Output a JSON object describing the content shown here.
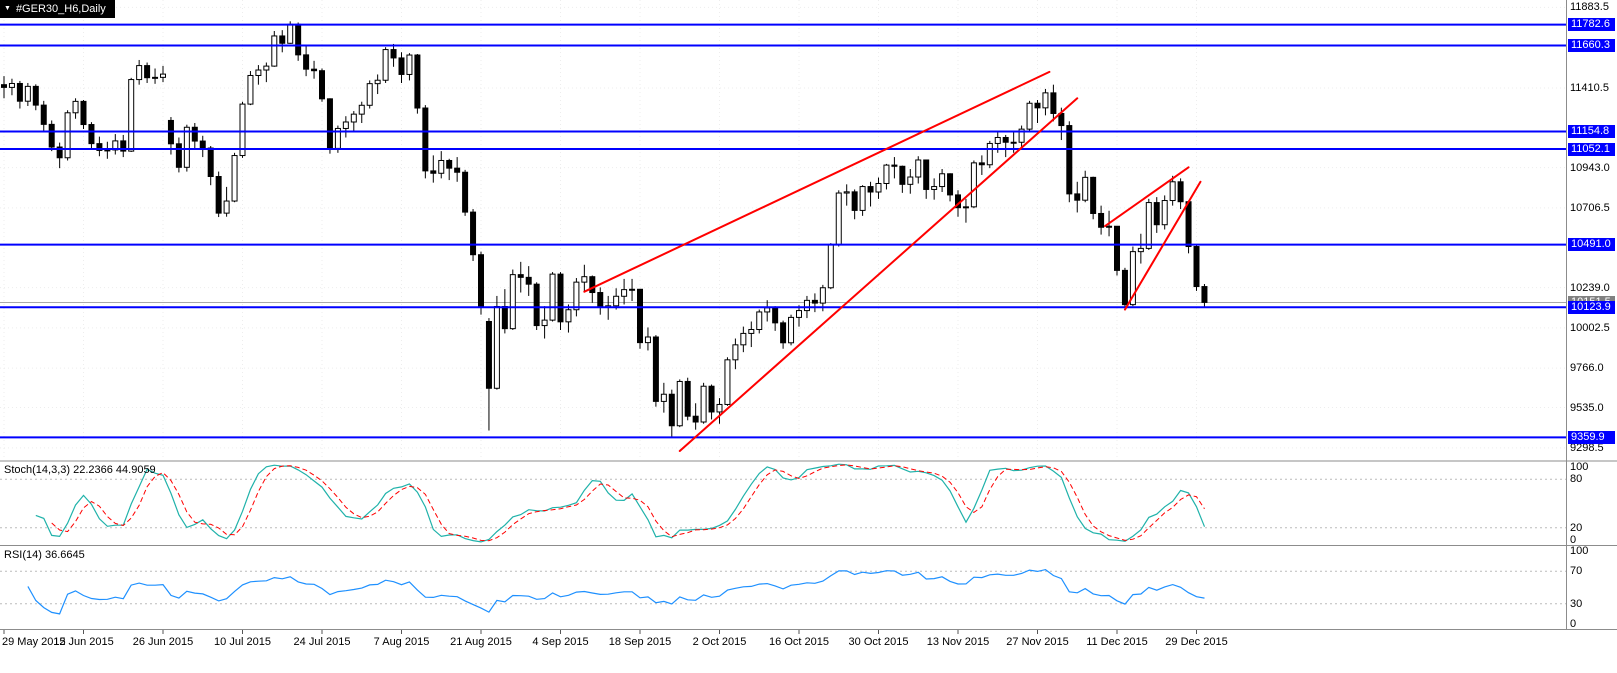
{
  "icons": {
    "expand_triangle": "▼"
  },
  "chart_data": {
    "type": "candlestick",
    "symbol_label": "#GER30_H6,Daily",
    "timeframe": "Daily",
    "x_tick_every": 10,
    "x_tick_labels": [
      "29 May 2015",
      "12 Jun 2015",
      "26 Jun 2015",
      "10 Jul 2015",
      "24 Jul 2015",
      "7 Aug 2015",
      "21 Aug 2015",
      "4 Sep 2015",
      "18 Sep 2015",
      "2 Oct 2015",
      "16 Oct 2015",
      "30 Oct 2015",
      "13 Nov 2015",
      "27 Nov 2015",
      "11 Dec 2015",
      "29 Dec 2015"
    ],
    "candles_format": "[open, high, low, close]",
    "candles": [
      [
        11430,
        11480,
        11350,
        11414
      ],
      [
        11414,
        11465,
        11368,
        11437
      ],
      [
        11437,
        11452,
        11290,
        11333
      ],
      [
        11333,
        11440,
        11305,
        11420
      ],
      [
        11420,
        11432,
        11280,
        11310
      ],
      [
        11310,
        11335,
        11160,
        11197
      ],
      [
        11197,
        11220,
        11040,
        11064
      ],
      [
        11064,
        11090,
        10940,
        11001
      ],
      [
        11001,
        11280,
        10985,
        11265
      ],
      [
        11265,
        11350,
        11230,
        11332
      ],
      [
        11332,
        11340,
        11170,
        11196
      ],
      [
        11196,
        11210,
        11050,
        11084
      ],
      [
        11084,
        11125,
        11010,
        11044
      ],
      [
        11044,
        11095,
        10995,
        11047
      ],
      [
        11047,
        11140,
        11020,
        11100
      ],
      [
        11100,
        11135,
        11005,
        11040
      ],
      [
        11040,
        11470,
        11035,
        11460
      ],
      [
        11460,
        11575,
        11430,
        11542
      ],
      [
        11542,
        11560,
        11440,
        11471
      ],
      [
        11471,
        11525,
        11435,
        11473
      ],
      [
        11473,
        11540,
        11445,
        11492
      ],
      [
        11220,
        11240,
        11020,
        11083
      ],
      [
        11083,
        11120,
        10915,
        10945
      ],
      [
        10945,
        11195,
        10920,
        11180
      ],
      [
        11180,
        11205,
        11050,
        11099
      ],
      [
        11099,
        11130,
        11005,
        11058
      ],
      [
        11058,
        11070,
        10840,
        10891
      ],
      [
        10891,
        10920,
        10653,
        10676
      ],
      [
        10676,
        10830,
        10655,
        10747
      ],
      [
        10747,
        11030,
        10740,
        11014
      ],
      [
        11014,
        11330,
        11000,
        11316
      ],
      [
        11316,
        11510,
        11310,
        11484
      ],
      [
        11484,
        11545,
        11430,
        11516
      ],
      [
        11516,
        11560,
        11445,
        11539
      ],
      [
        11539,
        11745,
        11535,
        11716
      ],
      [
        11716,
        11750,
        11620,
        11673
      ],
      [
        11673,
        11802,
        11670,
        11784
      ],
      [
        11784,
        11795,
        11570,
        11605
      ],
      [
        11605,
        11660,
        11480,
        11521
      ],
      [
        11521,
        11570,
        11465,
        11512
      ],
      [
        11512,
        11525,
        11330,
        11347
      ],
      [
        11347,
        11350,
        11025,
        11056
      ],
      [
        11056,
        11190,
        11030,
        11173
      ],
      [
        11173,
        11245,
        11120,
        11211
      ],
      [
        11211,
        11275,
        11160,
        11257
      ],
      [
        11257,
        11330,
        11205,
        11309
      ],
      [
        11309,
        11455,
        11290,
        11436
      ],
      [
        11436,
        11490,
        11375,
        11456
      ],
      [
        11456,
        11650,
        11440,
        11636
      ],
      [
        11636,
        11669,
        11535,
        11587
      ],
      [
        11587,
        11620,
        11440,
        11490
      ],
      [
        11490,
        11615,
        11455,
        11604
      ],
      [
        11604,
        11610,
        11260,
        11293
      ],
      [
        11293,
        11310,
        10880,
        10924
      ],
      [
        10924,
        11015,
        10855,
        10910
      ],
      [
        10910,
        11040,
        10880,
        10985
      ],
      [
        10985,
        10995,
        10870,
        10940
      ],
      [
        10940,
        11005,
        10860,
        10916
      ],
      [
        10916,
        10930,
        10660,
        10682
      ],
      [
        10682,
        10700,
        10395,
        10432
      ],
      [
        10432,
        10450,
        10080,
        10124
      ],
      [
        10040,
        10060,
        9400,
        9648
      ],
      [
        9648,
        10190,
        9640,
        10128
      ],
      [
        10128,
        10230,
        9970,
        9998
      ],
      [
        9998,
        10345,
        9990,
        10315
      ],
      [
        10315,
        10390,
        10210,
        10299
      ],
      [
        10299,
        10365,
        10190,
        10259
      ],
      [
        10259,
        10270,
        9990,
        10016
      ],
      [
        10016,
        10130,
        9940,
        10048
      ],
      [
        10048,
        10330,
        10040,
        10318
      ],
      [
        10318,
        10330,
        9990,
        10038
      ],
      [
        10038,
        10140,
        9975,
        10109
      ],
      [
        10109,
        10295,
        10070,
        10271
      ],
      [
        10271,
        10373,
        10210,
        10303
      ],
      [
        10303,
        10310,
        10150,
        10210
      ],
      [
        10210,
        10240,
        10080,
        10123
      ],
      [
        10123,
        10190,
        10050,
        10132
      ],
      [
        10132,
        10235,
        10110,
        10188
      ],
      [
        10188,
        10290,
        10140,
        10227
      ],
      [
        10227,
        10290,
        10160,
        10229
      ],
      [
        10229,
        10230,
        9880,
        9916
      ],
      [
        9916,
        10005,
        9870,
        9949
      ],
      [
        9949,
        9960,
        9540,
        9571
      ],
      [
        9571,
        9680,
        9505,
        9613
      ],
      [
        9613,
        9640,
        9360,
        9428
      ],
      [
        9428,
        9700,
        9420,
        9688
      ],
      [
        9688,
        9710,
        9460,
        9484
      ],
      [
        9484,
        9560,
        9405,
        9450
      ],
      [
        9450,
        9680,
        9440,
        9660
      ],
      [
        9660,
        9670,
        9465,
        9509
      ],
      [
        9509,
        9590,
        9440,
        9553
      ],
      [
        9553,
        9830,
        9545,
        9815
      ],
      [
        9815,
        9940,
        9760,
        9903
      ],
      [
        9903,
        10010,
        9860,
        9970
      ],
      [
        9970,
        10040,
        9890,
        9993
      ],
      [
        9993,
        10110,
        9970,
        10096
      ],
      [
        10096,
        10165,
        10040,
        10120
      ],
      [
        10120,
        10130,
        9985,
        10032
      ],
      [
        10032,
        10045,
        9880,
        9915
      ],
      [
        9915,
        10080,
        9900,
        10064
      ],
      [
        10064,
        10135,
        10010,
        10104
      ],
      [
        10104,
        10190,
        10060,
        10164
      ],
      [
        10164,
        10205,
        10095,
        10148
      ],
      [
        10148,
        10255,
        10100,
        10238
      ],
      [
        10238,
        10500,
        10230,
        10492
      ],
      [
        10492,
        10810,
        10480,
        10794
      ],
      [
        10794,
        10845,
        10720,
        10801
      ],
      [
        10801,
        10815,
        10640,
        10692
      ],
      [
        10692,
        10840,
        10660,
        10832
      ],
      [
        10832,
        10860,
        10715,
        10800
      ],
      [
        10800,
        10885,
        10760,
        10850
      ],
      [
        10850,
        10965,
        10815,
        10958
      ],
      [
        10958,
        11005,
        10880,
        10951
      ],
      [
        10951,
        10955,
        10795,
        10845
      ],
      [
        10845,
        10935,
        10790,
        10888
      ],
      [
        10888,
        11010,
        10850,
        10988
      ],
      [
        10988,
        10990,
        10760,
        10815
      ],
      [
        10815,
        10880,
        10755,
        10832
      ],
      [
        10832,
        10935,
        10800,
        10907
      ],
      [
        10907,
        10910,
        10745,
        10783
      ],
      [
        10783,
        10810,
        10655,
        10708
      ],
      [
        10708,
        10760,
        10620,
        10713
      ],
      [
        10713,
        10985,
        10705,
        10971
      ],
      [
        10971,
        11015,
        10900,
        10960
      ],
      [
        10960,
        11100,
        10940,
        11085
      ],
      [
        11085,
        11150,
        11030,
        11120
      ],
      [
        11120,
        11135,
        11005,
        11092
      ],
      [
        11092,
        11155,
        11030,
        11092
      ],
      [
        11092,
        11190,
        11050,
        11169
      ],
      [
        11169,
        11335,
        11150,
        11321
      ],
      [
        11321,
        11340,
        11205,
        11294
      ],
      [
        11294,
        11405,
        11250,
        11382
      ],
      [
        11382,
        11430,
        11215,
        11261
      ],
      [
        11261,
        11295,
        11105,
        11190
      ],
      [
        11190,
        11215,
        10740,
        10789
      ],
      [
        10789,
        10860,
        10680,
        10752
      ],
      [
        10752,
        10925,
        10740,
        10886
      ],
      [
        10886,
        10890,
        10640,
        10674
      ],
      [
        10674,
        10720,
        10550,
        10593
      ],
      [
        10593,
        10690,
        10540,
        10599
      ],
      [
        10599,
        10600,
        10310,
        10340
      ],
      [
        10340,
        10355,
        10123,
        10139
      ],
      [
        10139,
        10480,
        10130,
        10450
      ],
      [
        10450,
        10555,
        10380,
        10469
      ],
      [
        10469,
        10760,
        10460,
        10738
      ],
      [
        10738,
        10770,
        10560,
        10608
      ],
      [
        10608,
        10780,
        10580,
        10750
      ],
      [
        10750,
        10895,
        10720,
        10860
      ],
      [
        10860,
        10880,
        10700,
        10743
      ],
      [
        10743,
        10750,
        10440,
        10480
      ],
      [
        10480,
        10495,
        10220,
        10245
      ],
      [
        10245,
        10260,
        10123,
        10152
      ]
    ],
    "price_axis": {
      "axis_top_price": 11927,
      "axis_bottom_price": 9227,
      "plain_levels": [
        11883.5,
        11410.5,
        10943.0,
        10706.5,
        10239.0,
        10002.5,
        9766.0,
        9535.0,
        9298.5
      ],
      "hline_levels": [
        11782.6,
        11660.3,
        11154.8,
        11052.1,
        10491.0,
        10123.9,
        9359.9
      ],
      "current_price": 10151.5
    },
    "trendlines": [
      {
        "i1": 73,
        "p1": 10215,
        "i2": 131.5,
        "p2": 11505
      },
      {
        "i1": 85,
        "p1": 9280,
        "i2": 135,
        "p2": 11350
      },
      {
        "i1": 138.5,
        "p1": 10600,
        "i2": 149,
        "p2": 10945
      },
      {
        "i1": 141,
        "p1": 10110,
        "i2": 150.5,
        "p2": 10860
      }
    ],
    "indicators": [
      {
        "type": "stochastic",
        "label": "Stoch(14,3,3) 22.2366 44.9059",
        "params": [
          14,
          3,
          3
        ],
        "current_values": [
          22.2366,
          44.9059
        ],
        "levels": [
          80,
          20
        ],
        "axis_labels": [
          "100",
          "80",
          "20",
          "0"
        ]
      },
      {
        "type": "rsi",
        "label": "RSI(14) 36.6645",
        "params": [
          14
        ],
        "current_values": [
          36.6645
        ],
        "levels": [
          70,
          30
        ],
        "axis_labels": [
          "100",
          "70",
          "30",
          "0"
        ]
      }
    ],
    "colors": {
      "background": "#FFFFFF",
      "candle_outline": "#000000",
      "candle_up_fill": "#FFFFFF",
      "candle_down_fill": "#000000",
      "hline": "#0000FF",
      "trendline": "#FF0000",
      "stoch_main": "#20B2AA",
      "stoch_signal": "#FF0000",
      "rsi": "#1E90FF",
      "grid": "#EDEDED",
      "level_dotted": "#BBBBBB",
      "separator": "#8C8C8C",
      "current_price_line": "#A8A8A8",
      "current_price_badge": "#808080",
      "axis_text": "#000000",
      "title_bg": "#000000",
      "title_text": "#FFFFFF"
    }
  }
}
